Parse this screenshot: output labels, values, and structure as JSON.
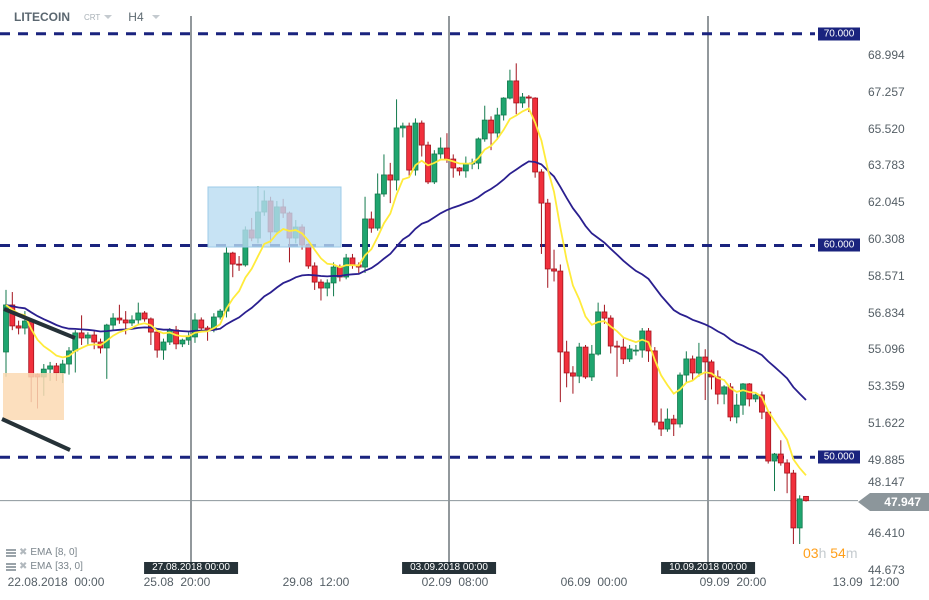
{
  "header": {
    "symbol": "LITECOIN",
    "chart_type": "CRT",
    "timeframe": "H4"
  },
  "indicators": [
    {
      "name": "EMA",
      "params": "[8, 0]",
      "color": "#ffeb3b"
    },
    {
      "name": "EMA",
      "params": "[33, 0]",
      "color": "#2a1f8f"
    }
  ],
  "countdown": {
    "hours": "03",
    "h_unit": "h",
    "minutes": "54",
    "m_unit": "m"
  },
  "chart_data": {
    "type": "candlestick",
    "series_fields": [
      "open",
      "high",
      "low",
      "close"
    ],
    "ohlc": [
      [
        54.97,
        57.9,
        53.8,
        57.19
      ],
      [
        57.19,
        57.8,
        56.0,
        56.2
      ],
      [
        56.2,
        56.45,
        55.8,
        56.1
      ],
      [
        56.1,
        56.9,
        55.8,
        56.43
      ],
      [
        56.43,
        56.5,
        52.6,
        53.79
      ],
      [
        53.9,
        53.95,
        52.3,
        53.79
      ],
      [
        53.79,
        54.4,
        52.9,
        54.16
      ],
      [
        54.16,
        54.5,
        53.6,
        54.31
      ],
      [
        54.31,
        54.45,
        53.6,
        53.98
      ],
      [
        53.98,
        54.6,
        53.5,
        54.4
      ],
      [
        54.4,
        55.2,
        53.9,
        55.02
      ],
      [
        55.02,
        56.0,
        54.0,
        55.87
      ],
      [
        55.87,
        56.7,
        55.3,
        55.63
      ],
      [
        55.63,
        55.9,
        55.3,
        55.77
      ],
      [
        55.77,
        55.95,
        55.1,
        55.44
      ],
      [
        55.44,
        55.6,
        54.9,
        55.16
      ],
      [
        55.16,
        56.3,
        53.7,
        56.24
      ],
      [
        56.24,
        56.8,
        56.0,
        56.57
      ],
      [
        56.57,
        57.2,
        56.3,
        56.48
      ],
      [
        56.48,
        56.9,
        55.8,
        56.34
      ],
      [
        56.34,
        56.7,
        56.2,
        56.48
      ],
      [
        56.48,
        57.3,
        56.3,
        56.81
      ],
      [
        56.81,
        56.9,
        56.4,
        56.53
      ],
      [
        56.53,
        56.6,
        55.3,
        55.91
      ],
      [
        55.91,
        56.0,
        54.7,
        55.06
      ],
      [
        55.06,
        55.6,
        54.6,
        55.44
      ],
      [
        55.44,
        56.1,
        55.3,
        56.01
      ],
      [
        56.01,
        56.2,
        55.1,
        55.35
      ],
      [
        55.35,
        55.6,
        55.2,
        55.53
      ],
      [
        55.53,
        55.9,
        55.3,
        55.68
      ],
      [
        55.68,
        56.8,
        55.4,
        56.48
      ],
      [
        56.48,
        56.6,
        56.0,
        56.1
      ],
      [
        56.1,
        56.2,
        55.5,
        56.01
      ],
      [
        56.01,
        56.8,
        55.9,
        56.62
      ],
      [
        56.62,
        57.0,
        56.5,
        56.9
      ],
      [
        56.9,
        59.9,
        56.6,
        59.64
      ],
      [
        59.64,
        59.7,
        58.5,
        59.12
      ],
      [
        59.12,
        59.5,
        58.8,
        59.08
      ],
      [
        59.08,
        60.9,
        59.0,
        60.73
      ],
      [
        60.73,
        61.3,
        60.2,
        60.35
      ],
      [
        60.35,
        62.8,
        60.1,
        61.58
      ],
      [
        61.58,
        62.6,
        61.4,
        62.1
      ],
      [
        62.1,
        62.3,
        60.1,
        60.64
      ],
      [
        60.64,
        62.1,
        60.5,
        61.82
      ],
      [
        61.82,
        62.2,
        61.3,
        61.53
      ],
      [
        61.53,
        61.6,
        59.2,
        60.35
      ],
      [
        60.35,
        61.2,
        60.1,
        60.87
      ],
      [
        60.87,
        61.0,
        59.8,
        60.02
      ],
      [
        60.02,
        60.1,
        58.9,
        59.03
      ],
      [
        59.03,
        59.2,
        57.9,
        58.27
      ],
      [
        58.27,
        58.4,
        57.4,
        57.99
      ],
      [
        57.99,
        58.4,
        57.6,
        58.23
      ],
      [
        58.23,
        59.2,
        57.6,
        58.98
      ],
      [
        58.98,
        59.1,
        58.3,
        58.51
      ],
      [
        58.51,
        59.6,
        58.4,
        59.41
      ],
      [
        59.41,
        59.6,
        58.9,
        59.08
      ],
      [
        59.08,
        59.2,
        58.7,
        58.98
      ],
      [
        58.98,
        62.3,
        58.7,
        61.25
      ],
      [
        61.25,
        61.6,
        60.6,
        60.82
      ],
      [
        60.82,
        63.4,
        60.7,
        62.43
      ],
      [
        62.43,
        64.3,
        62.3,
        63.33
      ],
      [
        63.33,
        63.9,
        62.0,
        63.09
      ],
      [
        63.09,
        66.9,
        62.6,
        65.55
      ],
      [
        65.55,
        65.8,
        65.1,
        65.64
      ],
      [
        65.64,
        65.8,
        63.3,
        63.56
      ],
      [
        63.56,
        66.0,
        63.3,
        65.78
      ],
      [
        65.78,
        65.9,
        64.2,
        64.74
      ],
      [
        64.74,
        64.9,
        62.9,
        63.0
      ],
      [
        63.0,
        64.5,
        62.9,
        64.32
      ],
      [
        64.32,
        65.1,
        64.1,
        64.6
      ],
      [
        64.6,
        65.3,
        63.9,
        64.08
      ],
      [
        64.08,
        64.3,
        63.2,
        63.66
      ],
      [
        63.66,
        63.7,
        63.3,
        63.52
      ],
      [
        63.52,
        64.2,
        63.2,
        63.85
      ],
      [
        63.85,
        64.1,
        63.6,
        63.89
      ],
      [
        63.89,
        65.1,
        63.6,
        65.03
      ],
      [
        65.03,
        66.6,
        64.9,
        65.92
      ],
      [
        65.92,
        66.1,
        64.5,
        65.31
      ],
      [
        65.31,
        66.5,
        65.0,
        66.16
      ],
      [
        66.16,
        67.0,
        65.9,
        66.96
      ],
      [
        66.96,
        68.3,
        66.9,
        67.77
      ],
      [
        67.77,
        68.6,
        66.2,
        66.73
      ],
      [
        66.73,
        67.2,
        66.5,
        67.01
      ],
      [
        67.01,
        67.1,
        66.3,
        66.96
      ],
      [
        66.96,
        67.0,
        63.2,
        63.47
      ],
      [
        63.47,
        63.6,
        59.6,
        62.0
      ],
      [
        62.0,
        62.2,
        58.0,
        58.89
      ],
      [
        58.89,
        59.8,
        58.3,
        58.79
      ],
      [
        58.79,
        59.1,
        52.6,
        54.97
      ],
      [
        54.97,
        55.5,
        53.3,
        53.98
      ],
      [
        53.98,
        54.3,
        53.0,
        53.83
      ],
      [
        53.83,
        55.4,
        53.5,
        55.2
      ],
      [
        55.2,
        55.3,
        53.7,
        53.79
      ],
      [
        53.79,
        55.3,
        53.6,
        54.87
      ],
      [
        54.87,
        57.3,
        54.8,
        56.86
      ],
      [
        56.86,
        57.2,
        56.3,
        56.57
      ],
      [
        56.57,
        56.7,
        54.9,
        55.25
      ],
      [
        55.25,
        55.5,
        53.8,
        55.2
      ],
      [
        55.2,
        55.6,
        54.4,
        54.64
      ],
      [
        54.64,
        55.3,
        54.5,
        55.11
      ],
      [
        55.02,
        55.3,
        54.8,
        55.06
      ],
      [
        55.06,
        56.1,
        54.7,
        55.96
      ],
      [
        55.96,
        56.1,
        54.5,
        55.02
      ],
      [
        55.02,
        55.2,
        51.5,
        51.66
      ],
      [
        51.66,
        52.3,
        51.0,
        51.33
      ],
      [
        51.33,
        52.3,
        51.2,
        51.8
      ],
      [
        51.8,
        52.0,
        51.0,
        51.57
      ],
      [
        51.57,
        54.0,
        51.4,
        53.88
      ],
      [
        53.88,
        55.0,
        53.5,
        54.64
      ],
      [
        54.64,
        54.8,
        53.6,
        53.98
      ],
      [
        53.98,
        55.4,
        53.8,
        54.73
      ],
      [
        54.73,
        55.1,
        52.7,
        54.5
      ],
      [
        54.5,
        54.6,
        53.2,
        53.79
      ],
      [
        53.79,
        54.1,
        52.5,
        52.98
      ],
      [
        52.98,
        53.4,
        52.5,
        53.32
      ],
      [
        53.32,
        53.5,
        51.7,
        51.9
      ],
      [
        51.9,
        53.0,
        51.6,
        52.46
      ],
      [
        52.46,
        53.5,
        52.0,
        53.46
      ],
      [
        53.46,
        53.5,
        52.4,
        52.75
      ],
      [
        52.75,
        53.0,
        52.6,
        52.94
      ],
      [
        52.94,
        53.1,
        51.8,
        52.13
      ],
      [
        52.13,
        52.2,
        49.7,
        49.82
      ],
      [
        49.82,
        50.2,
        48.4,
        50.15
      ],
      [
        50.15,
        50.8,
        49.6,
        49.73
      ],
      [
        49.73,
        49.9,
        48.3,
        49.25
      ],
      [
        49.25,
        49.4,
        45.9,
        46.66
      ],
      [
        46.66,
        48.2,
        45.9,
        48.03
      ],
      [
        48.15,
        48.15,
        47.9,
        47.947
      ]
    ],
    "ylim": [
      44.673,
      68.994
    ],
    "y_ticks": [
      "68.994",
      "67.257",
      "65.520",
      "63.783",
      "62.045",
      "60.308",
      "58.571",
      "56.834",
      "55.096",
      "53.359",
      "51.622",
      "49.885",
      "48.147",
      "46.410",
      "44.673"
    ],
    "x_ticks": [
      "22.08.2018  00:00",
      "25.08  20:00",
      "29.08  12:00",
      "02.09  08:00",
      "06.09  00:00",
      "09.09  20:00",
      "13.09  12:00"
    ],
    "separators": [
      "27.08.2018 00:00",
      "03.09.2018 00:00",
      "10.09.2018 00:00"
    ],
    "levels": [
      {
        "value": 70,
        "label": "70.000"
      },
      {
        "value": 60,
        "label": "60.000"
      },
      {
        "value": 50,
        "label": "50.000"
      }
    ],
    "last_price": {
      "value": 47.947,
      "label": "47.947"
    },
    "colors": {
      "up": "#1fa56f",
      "down": "#f1303c",
      "level": "#1a237e",
      "ema_fast": "#ffeb3b",
      "ema_slow": "#2a1f8f",
      "zone_support": "#fbd9b3",
      "zone_resistance": "#b9dcf1"
    },
    "grid": false
  }
}
